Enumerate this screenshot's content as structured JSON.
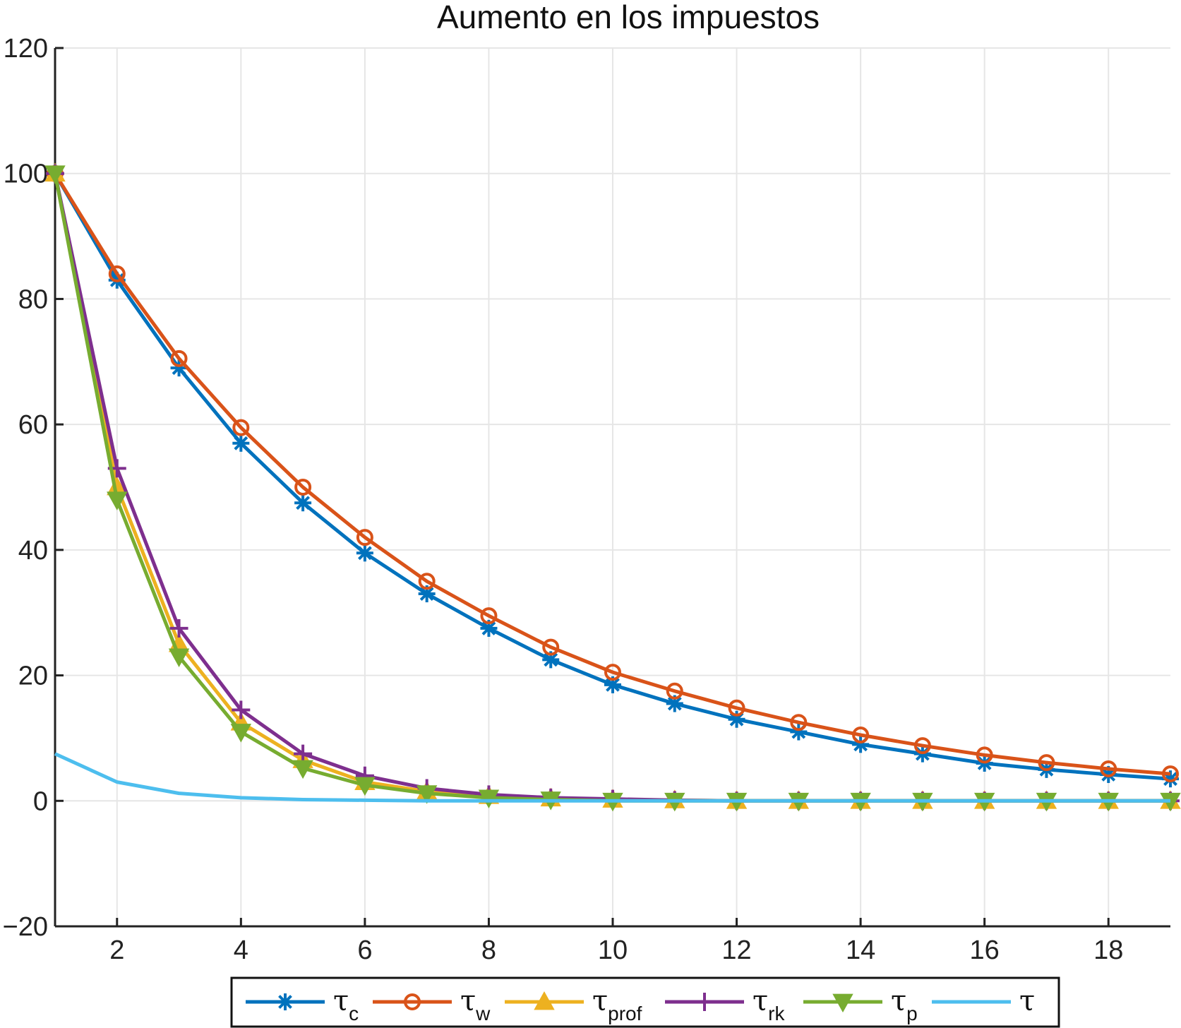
{
  "chart_data": {
    "type": "line",
    "title": "Aumento en los impuestos",
    "xlabel": "",
    "ylabel": "",
    "xlim": [
      1,
      19
    ],
    "ylim": [
      -20,
      120
    ],
    "xticks": [
      2,
      4,
      6,
      8,
      10,
      12,
      14,
      16,
      18
    ],
    "yticks": [
      -20,
      0,
      20,
      40,
      60,
      80,
      100,
      120
    ],
    "ytick_labels": [
      "−20",
      "0",
      "20",
      "40",
      "60",
      "80",
      "100",
      "120"
    ],
    "grid": true,
    "legend_position": "bottom-outside",
    "x": [
      1,
      2,
      3,
      4,
      5,
      6,
      7,
      8,
      9,
      10,
      11,
      12,
      13,
      14,
      15,
      16,
      17,
      18,
      19
    ],
    "series": [
      {
        "name": "τ",
        "sub": "c",
        "color": "#0072BD",
        "marker": "asterisk",
        "values": [
          100,
          83,
          69,
          57,
          47.5,
          39.5,
          33,
          27.5,
          22.5,
          18.5,
          15.5,
          13,
          11,
          9,
          7.5,
          6,
          5,
          4.2,
          3.5
        ]
      },
      {
        "name": "τ",
        "sub": "w",
        "color": "#D95319",
        "marker": "circle",
        "values": [
          100,
          84,
          70.5,
          59.5,
          50,
          42,
          35,
          29.5,
          24.5,
          20.5,
          17.5,
          14.8,
          12.5,
          10.5,
          8.8,
          7.3,
          6.1,
          5.1,
          4.3
        ]
      },
      {
        "name": "τ",
        "sub": "prof",
        "color": "#EDB120",
        "marker": "triangle-up",
        "values": [
          100,
          50,
          25,
          12.5,
          6.5,
          3,
          1.5,
          0.8,
          0.4,
          0.2,
          0.1,
          0,
          0,
          0,
          0,
          0,
          0,
          0,
          0
        ]
      },
      {
        "name": "τ",
        "sub": "rk",
        "color": "#7E2F8E",
        "marker": "plus",
        "values": [
          100,
          53,
          27.5,
          14.5,
          7.5,
          4,
          2,
          1,
          0.5,
          0.3,
          0.1,
          0,
          0,
          0,
          0,
          0,
          0,
          0,
          0
        ]
      },
      {
        "name": "τ",
        "sub": "p",
        "color": "#77AC30",
        "marker": "triangle-down",
        "values": [
          100,
          48,
          23,
          11,
          5.2,
          2.5,
          1.2,
          0.5,
          0.2,
          0,
          0,
          0,
          0,
          0,
          0,
          0,
          0,
          0,
          0
        ]
      },
      {
        "name": "τ",
        "sub": "",
        "color": "#4DBEEE",
        "marker": "none",
        "values": [
          7.5,
          3,
          1.2,
          0.5,
          0.2,
          0.1,
          0,
          0,
          0,
          0,
          0,
          0,
          0,
          0,
          0,
          0,
          0,
          0,
          0
        ]
      }
    ]
  }
}
